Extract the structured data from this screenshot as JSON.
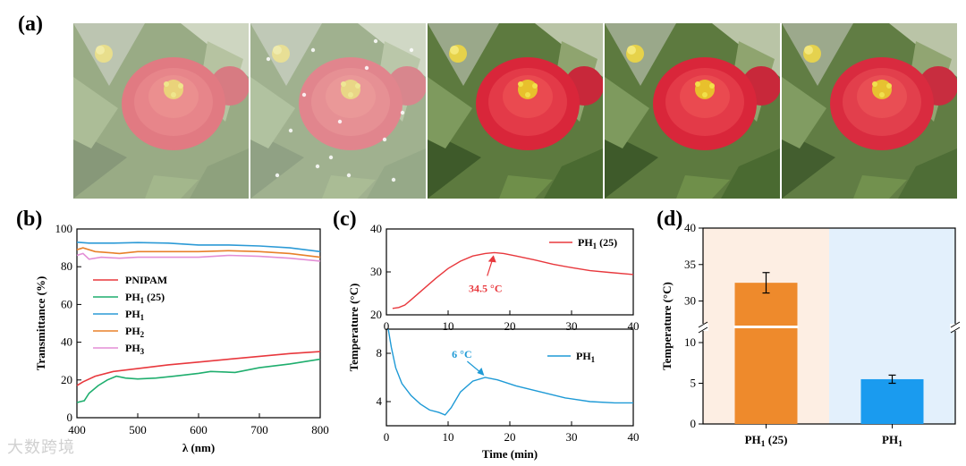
{
  "panels": {
    "a": "(a)",
    "b": "(b)",
    "c": "(c)",
    "d": "(d)"
  },
  "photos": [
    {
      "name": "photo-pnipam",
      "haze": 0.42,
      "speckles": false
    },
    {
      "name": "photo-ph1-25",
      "haze": 0.48,
      "speckles": true
    },
    {
      "name": "photo-ph1",
      "haze": 0.0,
      "speckles": false
    },
    {
      "name": "photo-ph2",
      "haze": 0.0,
      "speckles": false
    },
    {
      "name": "photo-ph3",
      "haze": 0.03,
      "speckles": false
    }
  ],
  "watermark": "大数跨境",
  "chart_data": [
    {
      "type": "line",
      "panel": "b",
      "xlabel": "λ (nm)",
      "ylabel": "Transmittance (%)",
      "xlim": [
        400,
        800
      ],
      "ylim": [
        0,
        100
      ],
      "xticks": [
        400,
        500,
        600,
        700,
        800
      ],
      "yticks": [
        0,
        20,
        40,
        60,
        80,
        100
      ],
      "legend_position": "center-left",
      "series": [
        {
          "name": "PNIPAM",
          "color": "#e8383d",
          "x": [
            400,
            410,
            430,
            460,
            500,
            550,
            600,
            650,
            700,
            750,
            800
          ],
          "y": [
            17,
            19,
            22,
            24.5,
            26,
            28,
            29.5,
            31,
            32.5,
            34,
            35
          ]
        },
        {
          "name": "PH₁ (25)",
          "color": "#1fae6e",
          "x": [
            400,
            405,
            412,
            420,
            435,
            450,
            465,
            480,
            500,
            530,
            560,
            600,
            620,
            660,
            700,
            750,
            800
          ],
          "y": [
            8,
            8.5,
            9,
            13,
            17,
            20,
            22,
            21,
            20.5,
            21,
            22,
            23.5,
            24.5,
            24,
            26.5,
            28.5,
            31
          ]
        },
        {
          "name": "PH₁",
          "color": "#2c9ad6",
          "x": [
            400,
            420,
            460,
            500,
            550,
            600,
            650,
            700,
            750,
            800
          ],
          "y": [
            93,
            92.5,
            92.5,
            92.8,
            92.5,
            91.5,
            91.5,
            91,
            90,
            88
          ]
        },
        {
          "name": "PH₂",
          "color": "#e8802a",
          "x": [
            400,
            410,
            430,
            470,
            500,
            550,
            600,
            650,
            700,
            750,
            800
          ],
          "y": [
            89,
            90,
            88,
            87,
            88,
            88,
            88,
            88.5,
            88,
            87,
            85
          ]
        },
        {
          "name": "PH₃",
          "color": "#e38ed6",
          "x": [
            400,
            410,
            420,
            440,
            470,
            500,
            550,
            600,
            650,
            700,
            750,
            800
          ],
          "y": [
            86,
            87,
            84,
            85,
            84.5,
            85,
            85,
            85,
            86,
            85.5,
            84.5,
            83
          ]
        }
      ]
    },
    {
      "type": "line",
      "panel": "c-top",
      "xlabel": "",
      "ylabel": "Temperature (°C)",
      "xlim": [
        0,
        40
      ],
      "ylim": [
        20,
        40
      ],
      "xticks": [
        0,
        10,
        20,
        30,
        40
      ],
      "yticks": [
        20,
        30,
        40
      ],
      "legend_position": "top-right",
      "annotation": {
        "text": "34.5 °C",
        "x": 17.5,
        "y": 34.5,
        "color": "#e8383d"
      },
      "series": [
        {
          "name": "PH₁ (25)",
          "color": "#e8383d",
          "x": [
            1,
            2,
            3,
            4,
            6,
            8,
            10,
            12,
            14,
            16,
            17.5,
            19,
            21,
            24,
            27,
            30,
            33,
            36,
            40
          ],
          "y": [
            21.5,
            21.7,
            22.3,
            23.5,
            26,
            28.5,
            30.8,
            32.5,
            33.7,
            34.3,
            34.5,
            34.3,
            33.7,
            32.8,
            31.8,
            31,
            30.3,
            29.9,
            29.4
          ]
        }
      ]
    },
    {
      "type": "line",
      "panel": "c-bottom",
      "xlabel": "Time (min)",
      "ylabel": "",
      "xlim": [
        0,
        40
      ],
      "ylim": [
        2,
        10
      ],
      "xticks": [
        0,
        10,
        20,
        30,
        40
      ],
      "yticks": [
        4,
        8
      ],
      "legend_position": "top-right",
      "annotation": {
        "text": "6 °C",
        "x": 16,
        "y": 6,
        "color": "#1e9ad6"
      },
      "series": [
        {
          "name": "PH₁",
          "color": "#1e9ad6",
          "x": [
            0.3,
            0.8,
            1.5,
            2.5,
            4,
            5.5,
            7,
            8.5,
            9.5,
            10.5,
            12,
            14,
            16,
            18,
            21,
            25,
            29,
            33,
            37,
            40
          ],
          "y": [
            10,
            8.5,
            6.8,
            5.5,
            4.5,
            3.8,
            3.3,
            3.1,
            2.9,
            3.5,
            4.8,
            5.7,
            6.0,
            5.8,
            5.3,
            4.8,
            4.3,
            4.0,
            3.9,
            3.9
          ]
        }
      ]
    },
    {
      "type": "bar",
      "panel": "d",
      "xlabel": "",
      "ylabel": "Temperature (°C)",
      "categories": [
        "PH₁ (25)",
        "PH₁"
      ],
      "values": [
        32.5,
        5.5
      ],
      "errors": [
        1.4,
        0.5
      ],
      "colors": [
        "#ee8a2c",
        "#1a9bef"
      ],
      "backgrounds": [
        "#fdeee3",
        "#e3f0fc"
      ],
      "ylim": [
        0,
        40
      ],
      "axis_break": [
        10,
        27
      ],
      "yticks": [
        0,
        5,
        10,
        30,
        35,
        40
      ]
    }
  ]
}
